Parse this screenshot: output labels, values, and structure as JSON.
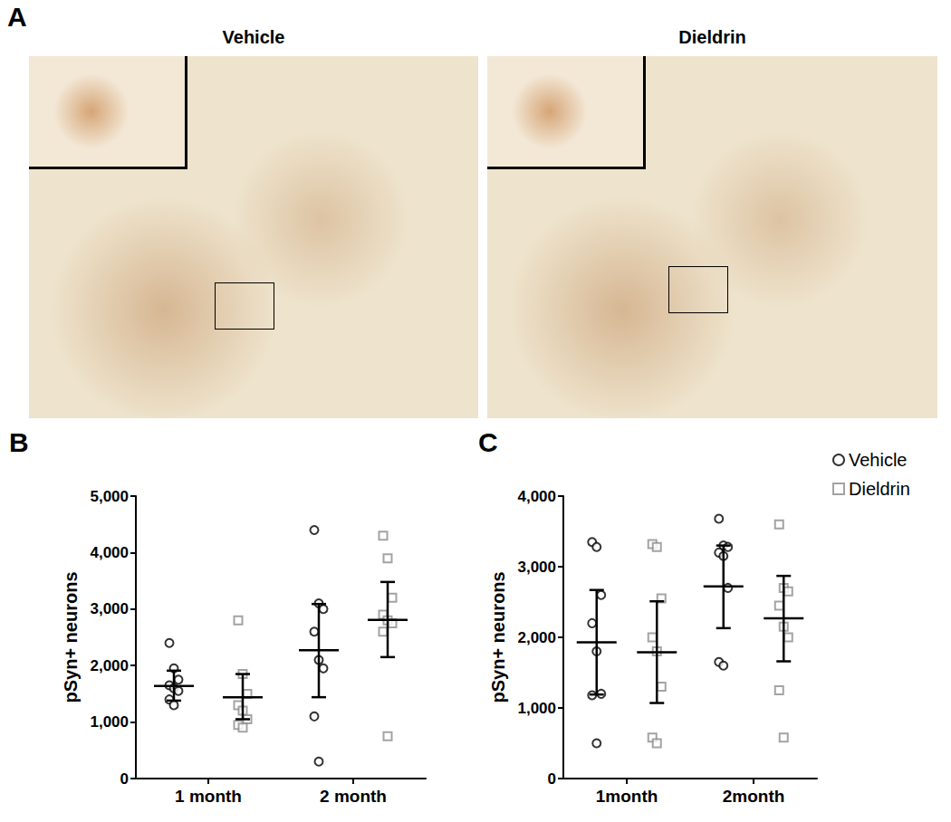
{
  "image_panel": {
    "label": "A",
    "images": [
      {
        "title": "Vehicle"
      },
      {
        "title": "Dieldrin"
      }
    ]
  },
  "chart_data": [
    {
      "type": "scatter",
      "panel_label": "B",
      "y_label": "pSyn+ neurons",
      "categories": [
        "1 month",
        "2 month"
      ],
      "ylim": [
        0,
        5000
      ],
      "yticks": [
        0,
        1000,
        2000,
        3000,
        4000,
        5000
      ],
      "grid": false,
      "series": [
        {
          "name": "Vehicle",
          "color": "#000000",
          "marker": "circle",
          "values": [
            [
              2400,
              1950,
              1750,
              1650,
              1600,
              1550,
              1400,
              1300
            ],
            [
              4400,
              3100,
              3000,
              2600,
              2100,
              1950,
              1100,
              300
            ]
          ],
          "mean": [
            1640,
            2270
          ],
          "error_low": [
            1380,
            1440
          ],
          "error_high": [
            1910,
            3090
          ]
        },
        {
          "name": "Dieldrin",
          "color": "#8c8c8c",
          "marker": "square",
          "values": [
            [
              2800,
              1850,
              1500,
              1300,
              1200,
              1050,
              950,
              900
            ],
            [
              4300,
              3900,
              3200,
              2900,
              2800,
              2750,
              2600,
              750
            ]
          ],
          "mean": [
            1440,
            2810
          ],
          "error_low": [
            1050,
            2150
          ],
          "error_high": [
            1850,
            3480
          ]
        }
      ]
    },
    {
      "type": "scatter",
      "panel_label": "C",
      "y_label": "pSyn+ neurons",
      "categories": [
        "1month",
        "2month"
      ],
      "ylim": [
        0,
        4000
      ],
      "yticks": [
        0,
        1000,
        2000,
        3000,
        4000
      ],
      "grid": false,
      "legend": "upper right",
      "series": [
        {
          "name": "Vehicle",
          "color": "#000000",
          "marker": "circle",
          "values": [
            [
              3350,
              3280,
              2600,
              2200,
              1800,
              1200,
              1180,
              500
            ],
            [
              3680,
              3300,
              3280,
              3200,
              3150,
              2700,
              1650,
              1600
            ]
          ],
          "mean": [
            1930,
            2720
          ],
          "error_low": [
            1190,
            2130
          ],
          "error_high": [
            2670,
            3300
          ]
        },
        {
          "name": "Dieldrin",
          "color": "#8c8c8c",
          "marker": "square",
          "values": [
            [
              3320,
              3280,
              2550,
              2000,
              1800,
              1300,
              580,
              500
            ],
            [
              3600,
              2700,
              2650,
              2450,
              2150,
              2000,
              1250,
              580
            ]
          ],
          "mean": [
            1790,
            2270
          ],
          "error_low": [
            1070,
            1660
          ],
          "error_high": [
            2510,
            2870
          ]
        }
      ]
    }
  ]
}
